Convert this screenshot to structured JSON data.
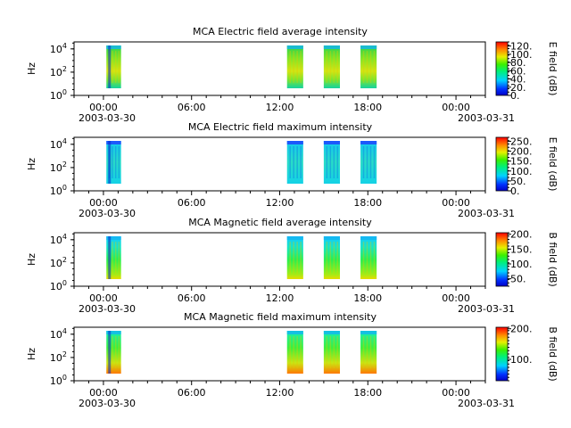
{
  "chart_data": [
    {
      "type": "heatmap",
      "title": "MCA  Electric field average intensity",
      "ylabel": "Hz",
      "y_ticks": [
        "10",
        "10",
        "10"
      ],
      "y_tick_exponents": [
        "0",
        "2",
        "4"
      ],
      "x_ticks": [
        "00:00",
        "06:00",
        "12:00",
        "18:00",
        "00:00"
      ],
      "x_start_date": "2003-03-30",
      "x_end_date": "2003-03-31",
      "colorbar_label": "E field (dB)",
      "colorbar_range": [
        0,
        130
      ],
      "colorbar_ticks": [
        "120.",
        "100.",
        "80.",
        "60.",
        "40.",
        "20.",
        "0."
      ],
      "colorbar_tick_values": [
        120,
        100,
        80,
        60,
        40,
        20,
        0
      ],
      "data_intervals_hours": [
        [
          2.2,
          3.2
        ],
        [
          14.5,
          15.6
        ],
        [
          17.0,
          18.1
        ],
        [
          19.5,
          20.6
        ]
      ]
    },
    {
      "type": "heatmap",
      "title": "MCA  Electric field maximum intensity",
      "ylabel": "Hz",
      "y_ticks": [
        "10",
        "10",
        "10"
      ],
      "y_tick_exponents": [
        "0",
        "2",
        "4"
      ],
      "x_ticks": [
        "00:00",
        "06:00",
        "12:00",
        "18:00",
        "00:00"
      ],
      "x_start_date": "2003-03-30",
      "x_end_date": "2003-03-31",
      "colorbar_label": "E field (dB)",
      "colorbar_range": [
        0,
        270
      ],
      "colorbar_ticks": [
        "250.",
        "200.",
        "150.",
        "100.",
        "50.",
        "0."
      ],
      "colorbar_tick_values": [
        250,
        200,
        150,
        100,
        50,
        0
      ],
      "data_intervals_hours": [
        [
          2.2,
          3.2
        ],
        [
          14.5,
          15.6
        ],
        [
          17.0,
          18.1
        ],
        [
          19.5,
          20.6
        ]
      ]
    },
    {
      "type": "heatmap",
      "title": "MCA  Magnetic field average intensity",
      "ylabel": "Hz",
      "y_ticks": [
        "10",
        "10",
        "10"
      ],
      "y_tick_exponents": [
        "0",
        "2",
        "4"
      ],
      "x_ticks": [
        "00:00",
        "06:00",
        "12:00",
        "18:00",
        "00:00"
      ],
      "x_start_date": "2003-03-30",
      "x_end_date": "2003-03-31",
      "colorbar_label": "B field (dB)",
      "colorbar_range": [
        25,
        205
      ],
      "colorbar_ticks": [
        "200.",
        "150.",
        "100.",
        "50."
      ],
      "colorbar_tick_values": [
        200,
        150,
        100,
        50
      ],
      "data_intervals_hours": [
        [
          2.2,
          3.2
        ],
        [
          14.5,
          15.6
        ],
        [
          17.0,
          18.1
        ],
        [
          19.5,
          20.6
        ]
      ]
    },
    {
      "type": "heatmap",
      "title": "MCA  Magnetic field maximum intensity",
      "ylabel": "Hz",
      "y_ticks": [
        "10",
        "10",
        "10"
      ],
      "y_tick_exponents": [
        "0",
        "2",
        "4"
      ],
      "x_ticks": [
        "00:00",
        "06:00",
        "12:00",
        "18:00",
        "00:00"
      ],
      "x_start_date": "2003-03-30",
      "x_end_date": "2003-03-31",
      "colorbar_label": "B field (dB)",
      "colorbar_range": [
        30,
        205
      ],
      "colorbar_ticks": [
        "200.",
        "100."
      ],
      "colorbar_tick_values": [
        200,
        100
      ],
      "data_intervals_hours": [
        [
          2.2,
          3.2
        ],
        [
          14.5,
          15.6
        ],
        [
          17.0,
          18.1
        ],
        [
          19.5,
          20.6
        ]
      ]
    }
  ]
}
